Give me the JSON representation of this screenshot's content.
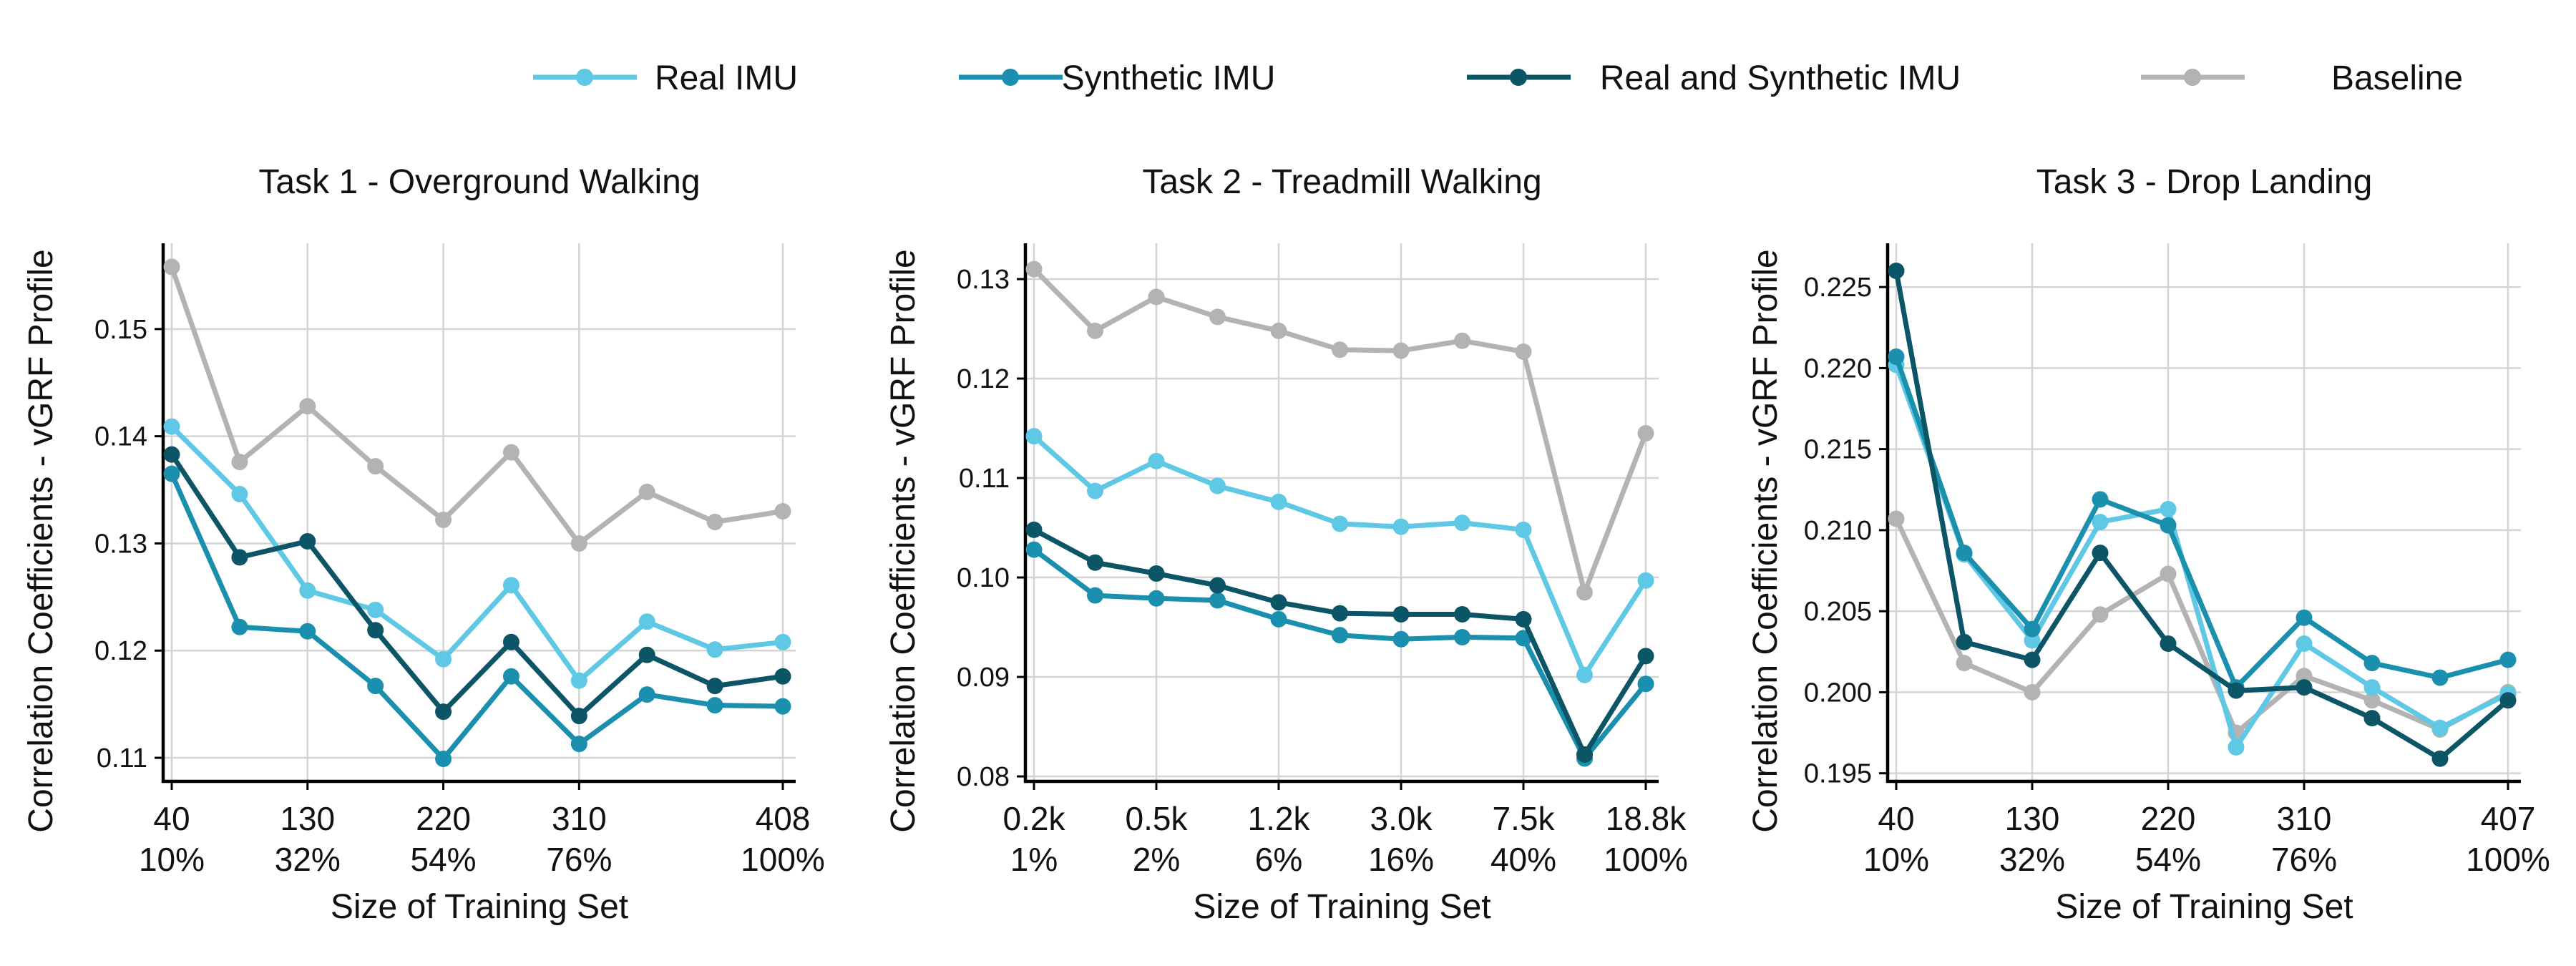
{
  "legend": [
    {
      "name": "Real IMU",
      "color": "#5ec8e5"
    },
    {
      "name": "Synthetic IMU",
      "color": "#1a8fae"
    },
    {
      "name": "Real and Synthetic IMU",
      "color": "#0c5566"
    },
    {
      "name": "Baseline",
      "color": "#b3b3b3"
    }
  ],
  "chart_data": [
    {
      "type": "line",
      "title": "Task 1 - Overground Walking",
      "xlabel": "Size of Training Set",
      "ylabel": "Correlation Coefficients - vGRF Profile",
      "x": [
        40,
        81,
        122,
        163,
        204,
        245,
        285,
        326,
        367,
        408
      ],
      "xticks": [
        [
          "40",
          "10%"
        ],
        [
          "130",
          "32%"
        ],
        [
          "220",
          "54%"
        ],
        [
          "310",
          "76%"
        ],
        [
          "408",
          "100%"
        ]
      ],
      "xtick_index": [
        0,
        2,
        4,
        6,
        9
      ],
      "yticks": [
        0.11,
        0.12,
        0.13,
        0.14,
        0.15
      ],
      "ytick_labels": [
        "0.11",
        "0.12",
        "0.13",
        "0.14",
        "0.15"
      ],
      "ylim": [
        0.1078,
        0.158
      ],
      "grid": true,
      "series": [
        {
          "name": "Real IMU",
          "color": "#5ec8e5",
          "values": [
            0.1409,
            0.1346,
            0.1256,
            0.1238,
            0.1192,
            0.1261,
            0.1172,
            0.1227,
            0.1201,
            0.1208
          ]
        },
        {
          "name": "Synthetic IMU",
          "color": "#1a8fae",
          "values": [
            0.1365,
            0.1222,
            0.1218,
            0.1167,
            0.1099,
            0.1176,
            0.1113,
            0.1159,
            0.1149,
            0.1148
          ]
        },
        {
          "name": "Real and Synthetic IMU",
          "color": "#0c5566",
          "values": [
            0.1383,
            0.1287,
            0.1302,
            0.1219,
            0.1143,
            0.1208,
            0.1139,
            0.1196,
            0.1167,
            0.1176
          ]
        },
        {
          "name": "Baseline",
          "color": "#b3b3b3",
          "values": [
            0.1558,
            0.1376,
            0.1428,
            0.1372,
            0.1322,
            0.1385,
            0.13,
            0.1348,
            0.132,
            0.133
          ]
        }
      ]
    },
    {
      "type": "line",
      "title": "Task 2 - Treadmill Walking",
      "xlabel": "Size of Training Set",
      "ylabel": "Correlation Coefficients - vGRF Profile",
      "x": [
        "0.2k",
        "",
        "0.5k",
        "",
        "1.2k",
        "",
        "3.0k",
        "",
        "7.5k",
        "",
        "18.8k"
      ],
      "xticks": [
        [
          "0.2k",
          "1%"
        ],
        [
          "0.5k",
          "2%"
        ],
        [
          "1.2k",
          "6%"
        ],
        [
          "3.0k",
          "16%"
        ],
        [
          "7.5k",
          "40%"
        ],
        [
          "18.8k",
          "100%"
        ]
      ],
      "xtick_index": [
        0,
        2,
        4,
        6,
        8,
        10
      ],
      "yticks": [
        0.08,
        0.09,
        0.1,
        0.11,
        0.12,
        0.13
      ],
      "ytick_labels": [
        "0.08",
        "0.09",
        "0.10",
        "0.11",
        "0.12",
        "0.13"
      ],
      "ylim": [
        0.0795,
        0.1336
      ],
      "grid": true,
      "series": [
        {
          "name": "Real IMU",
          "color": "#5ec8e5",
          "values": [
            0.1142,
            0.1087,
            0.1117,
            0.1092,
            0.1076,
            0.1054,
            0.1051,
            0.1055,
            0.1048,
            0.0902,
            0.0997
          ]
        },
        {
          "name": "Synthetic IMU",
          "color": "#1a8fae",
          "values": [
            0.1028,
            0.0982,
            0.0979,
            0.0977,
            0.0958,
            0.0942,
            0.0938,
            0.094,
            0.0939,
            0.0818,
            0.0893
          ]
        },
        {
          "name": "Real and Synthetic IMU",
          "color": "#0c5566",
          "values": [
            0.1048,
            0.1015,
            0.1004,
            0.0992,
            0.0975,
            0.0964,
            0.0963,
            0.0963,
            0.0958,
            0.0822,
            0.0921
          ]
        },
        {
          "name": "Baseline",
          "color": "#b3b3b3",
          "values": [
            0.131,
            0.1248,
            0.1282,
            0.1262,
            0.1248,
            0.1229,
            0.1228,
            0.1238,
            0.1227,
            0.0985,
            0.1145
          ]
        }
      ]
    },
    {
      "type": "line",
      "title": "Task 3 - Drop Landing",
      "xlabel": "Size of Training Set",
      "ylabel": "Correlation Coefficients - vGRF Profile",
      "x": [
        40,
        81,
        122,
        163,
        204,
        244,
        285,
        326,
        366,
        407
      ],
      "xticks": [
        [
          "40",
          "10%"
        ],
        [
          "130",
          "32%"
        ],
        [
          "220",
          "54%"
        ],
        [
          "310",
          "76%"
        ],
        [
          "407",
          "100%"
        ]
      ],
      "xtick_index": [
        0,
        2,
        4,
        6,
        9
      ],
      "yticks": [
        0.195,
        0.2,
        0.205,
        0.21,
        0.215,
        0.22,
        0.225
      ],
      "ytick_labels": [
        "0.195",
        "0.200",
        "0.205",
        "0.210",
        "0.215",
        "0.220",
        "0.225"
      ],
      "ylim": [
        0.1945,
        0.2277
      ],
      "grid": true,
      "series": [
        {
          "name": "Real IMU",
          "color": "#5ec8e5",
          "values": [
            0.2202,
            0.2085,
            0.2032,
            0.2105,
            0.2113,
            0.1966,
            0.203,
            0.2003,
            0.1978,
            0.1999
          ]
        },
        {
          "name": "Synthetic IMU",
          "color": "#1a8fae",
          "values": [
            0.2207,
            0.2086,
            0.2039,
            0.2119,
            0.2103,
            0.2003,
            0.2046,
            0.2018,
            0.2009,
            0.202
          ]
        },
        {
          "name": "Real and Synthetic IMU",
          "color": "#0c5566",
          "values": [
            0.226,
            0.2031,
            0.202,
            0.2086,
            0.203,
            0.2001,
            0.2003,
            0.1984,
            0.1959,
            0.1995
          ]
        },
        {
          "name": "Baseline",
          "color": "#b3b3b3",
          "values": [
            0.2107,
            0.2018,
            0.2,
            0.2048,
            0.2073,
            0.1975,
            0.201,
            0.1995,
            0.1977,
            0.2
          ]
        }
      ]
    }
  ]
}
